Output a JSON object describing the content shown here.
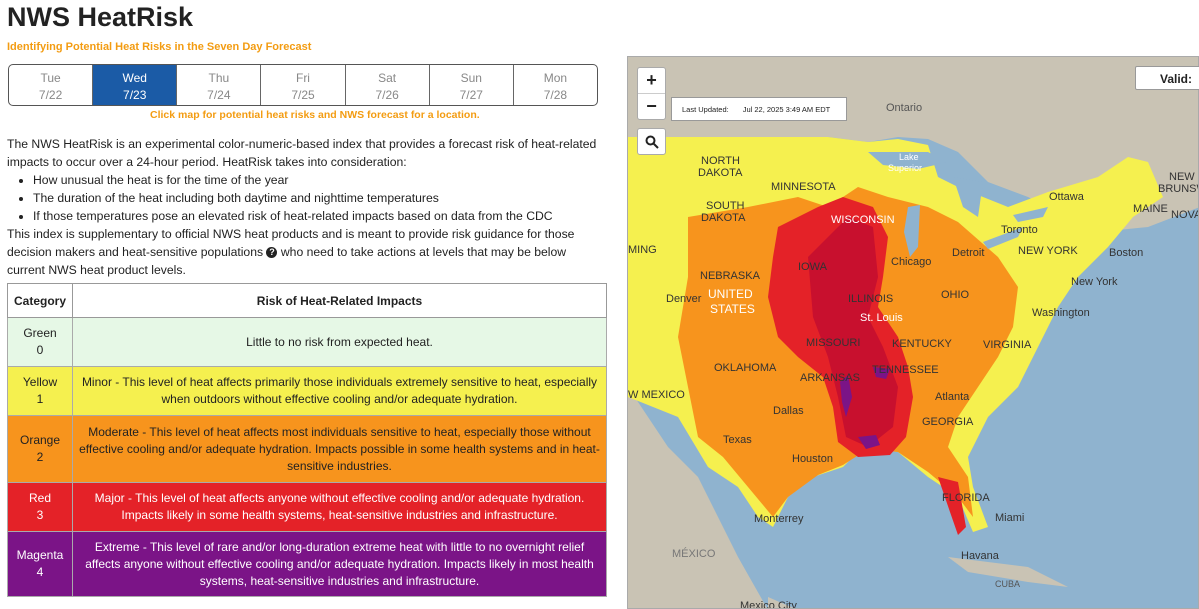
{
  "header": {
    "title": "NWS HeatRisk",
    "subtitle": "Identifying Potential Heat Risks in the Seven Day Forecast"
  },
  "days": [
    {
      "name": "Tue",
      "date": "7/22",
      "active": false
    },
    {
      "name": "Wed",
      "date": "7/23",
      "active": true
    },
    {
      "name": "Thu",
      "date": "7/24",
      "active": false
    },
    {
      "name": "Fri",
      "date": "7/25",
      "active": false
    },
    {
      "name": "Sat",
      "date": "7/26",
      "active": false
    },
    {
      "name": "Sun",
      "date": "7/27",
      "active": false
    },
    {
      "name": "Mon",
      "date": "7/28",
      "active": false
    }
  ],
  "hint": "Click map for potential heat risks and NWS forecast for a location.",
  "description": {
    "intro": "The NWS HeatRisk is an experimental color-numeric-based index that provides a forecast risk of heat-related impacts to occur over a 24-hour period. HeatRisk takes into consideration:",
    "bullets": [
      "How unusual the heat is for the time of the year",
      "The duration of the heat including both daytime and nighttime temperatures",
      "If those temperatures pose an elevated risk of heat-related impacts based on data from the CDC"
    ],
    "outro_before": "This index is supplementary to official NWS heat products and is meant to provide risk guidance for those decision makers and heat-sensitive populations",
    "outro_after": "who need to take actions at levels that may be below current NWS heat product levels."
  },
  "table": {
    "headers": [
      "Category",
      "Risk of Heat-Related Impacts"
    ],
    "rows": [
      {
        "name": "Green",
        "level": "0",
        "text": "Little to no risk from expected heat.",
        "color": "#e6f8e6"
      },
      {
        "name": "Yellow",
        "level": "1",
        "text": "Minor - This level of heat affects primarily those individuals extremely sensitive to heat, especially when outdoors without effective cooling and/or adequate hydration.",
        "color": "#f5f04f"
      },
      {
        "name": "Orange",
        "level": "2",
        "text": "Moderate - This level of heat affects most individuals sensitive to heat, especially those without effective cooling and/or adequate hydration. Impacts possible in some health systems and in heat-sensitive industries.",
        "color": "#f7941d"
      },
      {
        "name": "Red",
        "level": "3",
        "text": "Major - This level of heat affects anyone without effective cooling and/or adequate hydration. Impacts likely in some health systems, heat-sensitive industries and infrastructure.",
        "color": "#e42228"
      },
      {
        "name": "Magenta",
        "level": "4",
        "text": "Extreme - This level of rare and/or long-duration extreme heat with little to no overnight relief affects anyone without effective cooling and/or adequate hydration. Impacts likely in most health systems, heat-sensitive industries and infrastructure.",
        "color": "#7b1487"
      }
    ]
  },
  "map": {
    "zoom_in": "+",
    "zoom_out": "−",
    "search_icon": "magnifier-icon",
    "last_updated_label": "Last Updated:",
    "last_updated_value": "Jul 22, 2025 3:49 AM EDT",
    "valid_label": "Valid:",
    "labels": {
      "ontario": "Ontario",
      "north_dakota_1": "NORTH",
      "north_dakota_2": "DAKOTA",
      "minnesota": "MINNESOTA",
      "lake_superior_1": "Lake",
      "lake_superior_2": "Superior",
      "south_dakota_1": "SOUTH",
      "south_dakota_2": "DAKOTA",
      "wisconsin": "WISCONSIN",
      "ottawa": "Ottawa",
      "maine": "MAINE",
      "new_brunswick_1": "NEW",
      "new_brunswick_2": "BRUNSWICK",
      "nova": "NOVA",
      "wyoming": "MING",
      "toronto": "Toronto",
      "detroit": "Detroit",
      "new_york_state": "NEW YORK",
      "boston": "Boston",
      "nebraska": "NEBRASKA",
      "iowa": "IOWA",
      "chicago": "Chicago",
      "new_york_city": "New York",
      "denver": "Denver",
      "us_1": "UNITED",
      "us_2": "STATES",
      "illinois": "ILLINOIS",
      "ohio": "OHIO",
      "washington": "Washington",
      "st_louis": "St. Louis",
      "missouri": "MISSOURI",
      "kentucky": "KENTUCKY",
      "virginia": "VIRGINIA",
      "oklahoma": "OKLAHOMA",
      "arkansas": "ARKANSAS",
      "tennessee": "TENNESSEE",
      "new_mexico": "W MEXICO",
      "atlanta": "Atlanta",
      "dallas": "Dallas",
      "texas": "Texas",
      "georgia": "GEORGIA",
      "houston": "Houston",
      "florida": "FLORIDA",
      "miami": "Miami",
      "monterrey": "Monterrey",
      "mexico": "MÉXICO",
      "havana": "Havana",
      "cuba": "CUBA",
      "mexico_city": "Mexico City"
    },
    "colors": {
      "water": "#8fb3cf",
      "land": "#c9c3b4",
      "yellow": "#f5f04f",
      "orange": "#f7941d",
      "red": "#e42228",
      "magenta": "#7b1487",
      "darkred": "#c8102e"
    }
  }
}
